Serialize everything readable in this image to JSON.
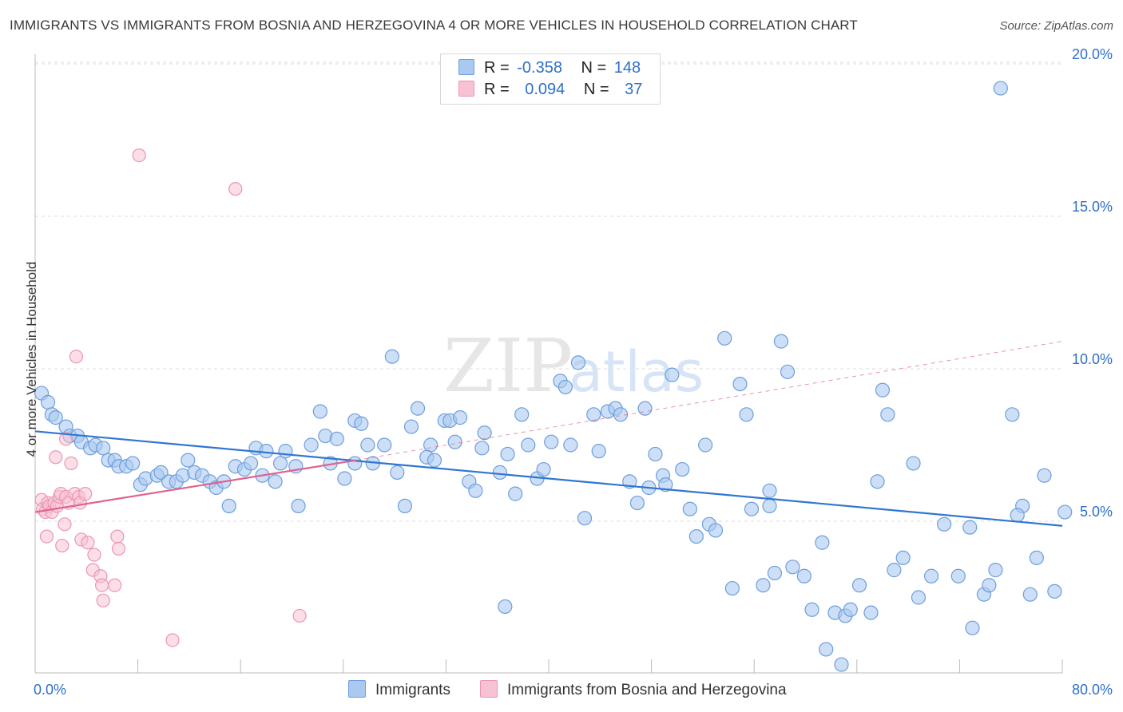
{
  "header": {
    "title": "IMMIGRANTS VS IMMIGRANTS FROM BOSNIA AND HERZEGOVINA 4 OR MORE VEHICLES IN HOUSEHOLD CORRELATION CHART",
    "source": "Source: ZipAtlas.com"
  },
  "watermark": {
    "zip": "ZIP",
    "atlas": "atlas"
  },
  "legend_top": {
    "r_label": "R =",
    "n_label": "N =",
    "rows": [
      {
        "r": "-0.358",
        "n": "148"
      },
      {
        "r": "0.094",
        "n": "37"
      }
    ]
  },
  "legend_bottom": [
    "Immigrants",
    "Immigrants from Bosnia and Herzegovina"
  ],
  "colors": {
    "blue_fill": "#aac9f0",
    "blue_stroke": "#6e9ede",
    "blue_line": "#2f76d2",
    "pink_fill": "#f7c3d3",
    "pink_stroke": "#ec95b2",
    "pink_line": "#e0628c",
    "tick_label": "#2f6fca",
    "grid": "#dddddd"
  },
  "chart_data": {
    "type": "scatter",
    "title": "IMMIGRANTS VS IMMIGRANTS FROM BOSNIA AND HERZEGOVINA 4 OR MORE VEHICLES IN HOUSEHOLD CORRELATION CHART",
    "xlabel": "",
    "ylabel": "4 or more Vehicles in Household",
    "xlim": [
      0,
      80
    ],
    "ylim": [
      0,
      20.5
    ],
    "x_tick_labels": [
      "0.0%",
      "80.0%"
    ],
    "y_ticks": [
      5,
      10,
      15,
      20
    ],
    "y_tick_labels": [
      "5.0%",
      "10.0%",
      "15.0%",
      "20.0%"
    ],
    "grid": true,
    "legend_position": "top-center",
    "series": [
      {
        "name": "Immigrants",
        "r": -0.358,
        "n": 148,
        "trend": {
          "x0": 0,
          "y0": 7.95,
          "x1": 80,
          "y1": 4.85
        },
        "points": [
          [
            0.5,
            9.2
          ],
          [
            1.0,
            8.9
          ],
          [
            1.3,
            8.5
          ],
          [
            1.6,
            8.4
          ],
          [
            2.4,
            8.1
          ],
          [
            2.7,
            7.8
          ],
          [
            3.3,
            7.8
          ],
          [
            3.6,
            7.6
          ],
          [
            4.3,
            7.4
          ],
          [
            4.7,
            7.5
          ],
          [
            5.3,
            7.4
          ],
          [
            5.7,
            7.0
          ],
          [
            6.2,
            7.0
          ],
          [
            6.5,
            6.8
          ],
          [
            7.1,
            6.8
          ],
          [
            7.6,
            6.9
          ],
          [
            8.2,
            6.2
          ],
          [
            8.6,
            6.4
          ],
          [
            9.5,
            6.5
          ],
          [
            9.8,
            6.6
          ],
          [
            10.4,
            6.3
          ],
          [
            11.0,
            6.3
          ],
          [
            11.5,
            6.5
          ],
          [
            11.9,
            7.0
          ],
          [
            12.4,
            6.6
          ],
          [
            13.0,
            6.5
          ],
          [
            13.6,
            6.3
          ],
          [
            14.1,
            6.1
          ],
          [
            14.7,
            6.3
          ],
          [
            15.1,
            5.5
          ],
          [
            15.6,
            6.8
          ],
          [
            16.3,
            6.7
          ],
          [
            16.8,
            6.9
          ],
          [
            17.2,
            7.4
          ],
          [
            17.7,
            6.5
          ],
          [
            18.0,
            7.3
          ],
          [
            18.7,
            6.3
          ],
          [
            19.1,
            6.9
          ],
          [
            19.5,
            7.3
          ],
          [
            20.3,
            6.8
          ],
          [
            20.5,
            5.5
          ],
          [
            21.5,
            7.5
          ],
          [
            22.2,
            8.6
          ],
          [
            22.6,
            7.8
          ],
          [
            23.0,
            6.9
          ],
          [
            23.5,
            7.7
          ],
          [
            24.1,
            6.4
          ],
          [
            24.9,
            8.3
          ],
          [
            25.4,
            8.2
          ],
          [
            25.9,
            7.5
          ],
          [
            26.3,
            6.9
          ],
          [
            27.2,
            7.5
          ],
          [
            27.8,
            10.4
          ],
          [
            28.2,
            6.6
          ],
          [
            28.8,
            5.5
          ],
          [
            29.3,
            8.1
          ],
          [
            29.8,
            8.7
          ],
          [
            30.8,
            7.5
          ],
          [
            30.5,
            7.1
          ],
          [
            31.1,
            7.0
          ],
          [
            31.9,
            8.3
          ],
          [
            32.3,
            8.3
          ],
          [
            32.7,
            7.6
          ],
          [
            33.1,
            8.4
          ],
          [
            33.8,
            6.3
          ],
          [
            34.3,
            6.0
          ],
          [
            34.8,
            7.4
          ],
          [
            35.0,
            7.9
          ],
          [
            36.2,
            6.6
          ],
          [
            36.8,
            7.2
          ],
          [
            37.4,
            5.9
          ],
          [
            37.9,
            8.5
          ],
          [
            38.4,
            7.5
          ],
          [
            39.1,
            6.4
          ],
          [
            39.6,
            6.7
          ],
          [
            40.2,
            7.6
          ],
          [
            40.9,
            9.6
          ],
          [
            41.3,
            9.4
          ],
          [
            41.7,
            7.5
          ],
          [
            42.3,
            10.2
          ],
          [
            42.8,
            5.1
          ],
          [
            43.5,
            8.5
          ],
          [
            43.9,
            7.3
          ],
          [
            44.6,
            8.6
          ],
          [
            45.2,
            8.7
          ],
          [
            45.6,
            8.5
          ],
          [
            46.3,
            6.3
          ],
          [
            46.9,
            5.6
          ],
          [
            47.5,
            8.7
          ],
          [
            47.8,
            6.1
          ],
          [
            48.3,
            7.2
          ],
          [
            48.9,
            6.5
          ],
          [
            49.1,
            6.2
          ],
          [
            49.6,
            9.8
          ],
          [
            50.4,
            6.7
          ],
          [
            51.0,
            5.4
          ],
          [
            51.5,
            4.5
          ],
          [
            52.2,
            7.5
          ],
          [
            52.5,
            4.9
          ],
          [
            53.0,
            4.7
          ],
          [
            53.7,
            11.0
          ],
          [
            54.3,
            2.8
          ],
          [
            54.9,
            9.5
          ],
          [
            55.4,
            8.5
          ],
          [
            55.8,
            5.4
          ],
          [
            56.7,
            2.9
          ],
          [
            57.2,
            6.0
          ],
          [
            57.6,
            3.3
          ],
          [
            58.1,
            10.9
          ],
          [
            58.6,
            9.9
          ],
          [
            59.0,
            3.5
          ],
          [
            59.9,
            3.2
          ],
          [
            60.5,
            2.1
          ],
          [
            61.3,
            4.3
          ],
          [
            61.6,
            0.8
          ],
          [
            62.3,
            2.0
          ],
          [
            62.8,
            0.3
          ],
          [
            63.1,
            1.9
          ],
          [
            63.5,
            2.1
          ],
          [
            64.2,
            2.9
          ],
          [
            65.1,
            2.0
          ],
          [
            65.6,
            6.3
          ],
          [
            66.0,
            9.3
          ],
          [
            66.4,
            8.5
          ],
          [
            66.9,
            3.4
          ],
          [
            67.6,
            3.8
          ],
          [
            68.4,
            6.9
          ],
          [
            68.8,
            2.5
          ],
          [
            69.8,
            3.2
          ],
          [
            70.8,
            4.9
          ],
          [
            71.9,
            3.2
          ],
          [
            72.8,
            4.8
          ],
          [
            73.0,
            1.5
          ],
          [
            73.9,
            2.6
          ],
          [
            74.3,
            2.9
          ],
          [
            74.8,
            3.4
          ],
          [
            75.2,
            19.2
          ],
          [
            76.1,
            8.5
          ],
          [
            76.9,
            5.5
          ],
          [
            77.5,
            2.6
          ],
          [
            78.0,
            3.8
          ],
          [
            78.6,
            6.5
          ],
          [
            79.4,
            2.7
          ],
          [
            80.2,
            5.3
          ],
          [
            76.5,
            5.2
          ],
          [
            57.2,
            5.5
          ],
          [
            24.9,
            6.9
          ],
          [
            36.6,
            2.2
          ]
        ]
      },
      {
        "name": "Immigrants from Bosnia and Herzegovina",
        "r": 0.094,
        "n": 37,
        "trend": {
          "x0": 0,
          "y0": 5.3,
          "x1": 25,
          "y1": 7.0,
          "dashed_to_x": 80,
          "dashed_to_y": 10.9
        },
        "points": [
          [
            0.5,
            5.7
          ],
          [
            0.6,
            5.4
          ],
          [
            0.8,
            5.3
          ],
          [
            1.0,
            5.6
          ],
          [
            1.1,
            5.5
          ],
          [
            1.3,
            5.3
          ],
          [
            1.5,
            5.6
          ],
          [
            1.7,
            5.5
          ],
          [
            1.9,
            5.8
          ],
          [
            2.0,
            5.9
          ],
          [
            2.4,
            5.8
          ],
          [
            2.6,
            5.6
          ],
          [
            3.1,
            5.9
          ],
          [
            3.4,
            5.8
          ],
          [
            3.5,
            5.6
          ],
          [
            3.9,
            5.9
          ],
          [
            0.9,
            4.5
          ],
          [
            1.6,
            7.1
          ],
          [
            2.4,
            7.7
          ],
          [
            2.8,
            6.9
          ],
          [
            3.2,
            10.4
          ],
          [
            2.1,
            4.2
          ],
          [
            2.3,
            4.9
          ],
          [
            3.6,
            4.4
          ],
          [
            4.1,
            4.3
          ],
          [
            4.6,
            3.9
          ],
          [
            4.5,
            3.4
          ],
          [
            5.1,
            3.2
          ],
          [
            5.2,
            2.9
          ],
          [
            5.3,
            2.4
          ],
          [
            6.2,
            2.9
          ],
          [
            6.5,
            4.1
          ],
          [
            6.4,
            4.5
          ],
          [
            8.1,
            17.0
          ],
          [
            10.7,
            1.1
          ],
          [
            15.6,
            15.9
          ],
          [
            20.6,
            1.9
          ]
        ]
      }
    ]
  }
}
